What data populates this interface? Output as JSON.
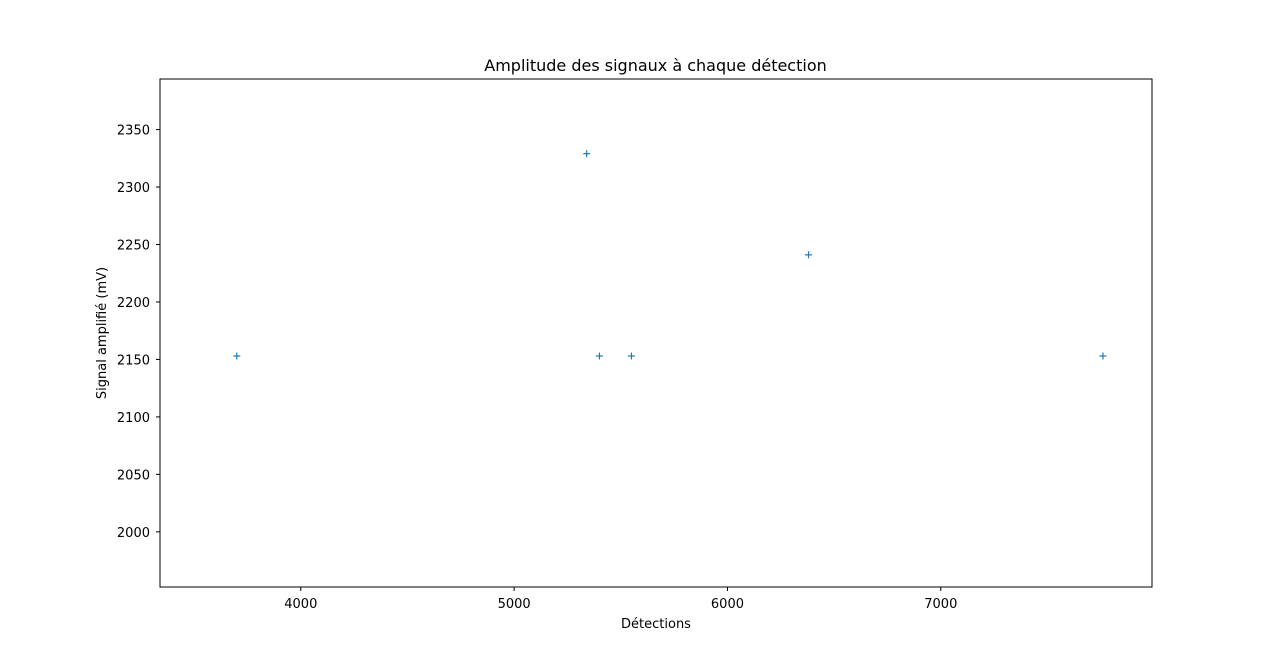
{
  "chart_data": {
    "type": "scatter",
    "title": "Amplitude des signaux à chaque détection",
    "xlabel": "Détections",
    "ylabel": "Signal amplifié (mV)",
    "xlim": [
      3340,
      7990
    ],
    "ylim": [
      1952,
      2394
    ],
    "xticks": [
      4000,
      5000,
      6000,
      7000
    ],
    "yticks": [
      2000,
      2050,
      2100,
      2150,
      2200,
      2250,
      2300,
      2350
    ],
    "marker": "+",
    "grid": false,
    "legend": "none",
    "series": [
      {
        "color": "#1f77b4",
        "x": [
          3700,
          5340,
          5400,
          5550,
          6380,
          7760
        ],
        "y": [
          2153,
          2329,
          2153,
          2153,
          2241,
          2153
        ]
      }
    ]
  }
}
